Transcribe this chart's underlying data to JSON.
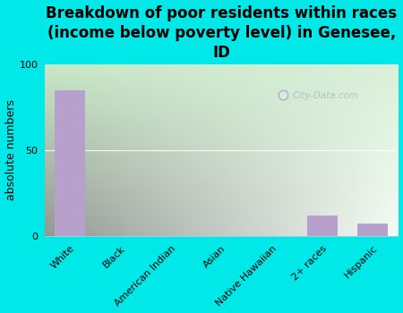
{
  "categories": [
    "White",
    "Black",
    "American Indian",
    "Asian",
    "Native Hawaiian",
    "2+ races",
    "Hispanic"
  ],
  "values": [
    85,
    0,
    0,
    0,
    0,
    12,
    7
  ],
  "bar_color": "#b8a0cc",
  "background_color": "#00e8e8",
  "plot_bg_color_topleft": "#c8e8c8",
  "plot_bg_color_topright": "#e8f5e8",
  "plot_bg_color_bottomright": "#f0faf5",
  "title": "Breakdown of poor residents within races\n(income below poverty level) in Genesee,\nID",
  "ylabel": "absolute numbers",
  "ylim": [
    0,
    100
  ],
  "yticks": [
    0,
    50,
    100
  ],
  "title_fontsize": 12,
  "axis_label_fontsize": 9,
  "watermark": "City-Data.com",
  "grid_color": "#ffffff",
  "tick_label_fontsize": 8
}
